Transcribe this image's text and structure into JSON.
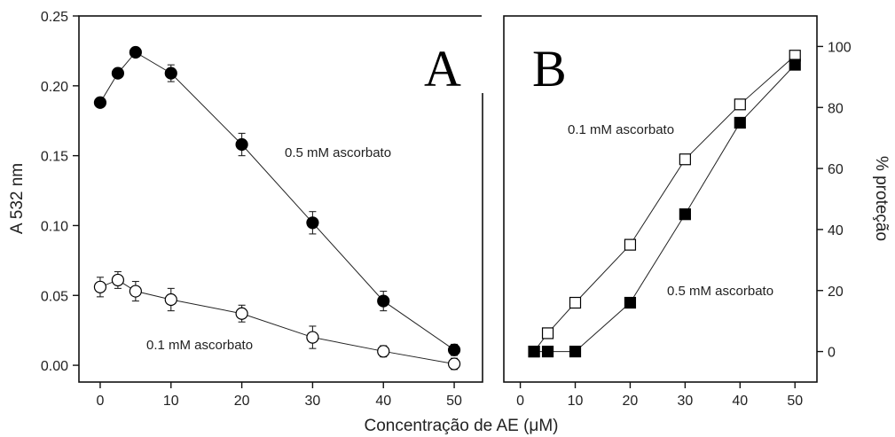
{
  "figure": {
    "xlabel": "Concentração de AE (μM)"
  },
  "chart_data": [
    {
      "type": "line",
      "panel_label": "A",
      "ylabel": "A 532 nm",
      "xlim": [
        -3,
        54
      ],
      "ylim": [
        -0.012,
        0.25
      ],
      "xticks": [
        "0",
        "10",
        "20",
        "30",
        "40",
        "50"
      ],
      "xtick_values": [
        0,
        10,
        20,
        30,
        40,
        50
      ],
      "yticks": [
        "0.00",
        "0.05",
        "0.10",
        "0.15",
        "0.20",
        "0.25"
      ],
      "ytick_values": [
        0,
        0.05,
        0.1,
        0.15,
        0.2,
        0.25
      ],
      "series": [
        {
          "name": "0.5 mM ascorbato",
          "marker": "filled-circle",
          "x": [
            0,
            2.5,
            5,
            10,
            20,
            30,
            40,
            50
          ],
          "y": [
            0.188,
            0.209,
            0.224,
            0.209,
            0.158,
            0.102,
            0.046,
            0.011
          ],
          "err": [
            0,
            0,
            0,
            0.006,
            0.008,
            0.008,
            0.007,
            0.004
          ]
        },
        {
          "name": "0.1 mM ascorbato",
          "marker": "open-circle",
          "x": [
            0,
            2.5,
            5,
            10,
            20,
            30,
            40,
            50
          ],
          "y": [
            0.056,
            0.061,
            0.053,
            0.047,
            0.037,
            0.02,
            0.01,
            0.001
          ],
          "err": [
            0.007,
            0.006,
            0.007,
            0.008,
            0.006,
            0.008,
            0.004,
            0.004
          ]
        }
      ],
      "annotations": [
        "0.5 mM ascorbato",
        "0.1 mM ascorbato"
      ]
    },
    {
      "type": "line",
      "panel_label": "B",
      "ylabel": "% proteção",
      "y_axis_side": "right",
      "xlim": [
        -3,
        54
      ],
      "ylim": [
        -10,
        110
      ],
      "xticks": [
        "0",
        "10",
        "20",
        "30",
        "40",
        "50"
      ],
      "xtick_values": [
        0,
        10,
        20,
        30,
        40,
        50
      ],
      "yticks": [
        "0",
        "20",
        "40",
        "60",
        "80",
        "100"
      ],
      "ytick_values": [
        0,
        20,
        40,
        60,
        80,
        100
      ],
      "series": [
        {
          "name": "0.1 mM ascorbato",
          "marker": "open-square",
          "x": [
            2.5,
            5,
            10,
            20,
            30,
            40,
            50
          ],
          "y": [
            0,
            6,
            16,
            35,
            63,
            81,
            97
          ]
        },
        {
          "name": "0.5 mM ascorbato",
          "marker": "filled-square",
          "x": [
            2.5,
            5,
            10,
            20,
            30,
            40,
            50
          ],
          "y": [
            0,
            0,
            0,
            16,
            45,
            75,
            94
          ]
        }
      ],
      "annotations": [
        "0.1 mM ascorbato",
        "0.5 mM ascorbato"
      ]
    }
  ]
}
